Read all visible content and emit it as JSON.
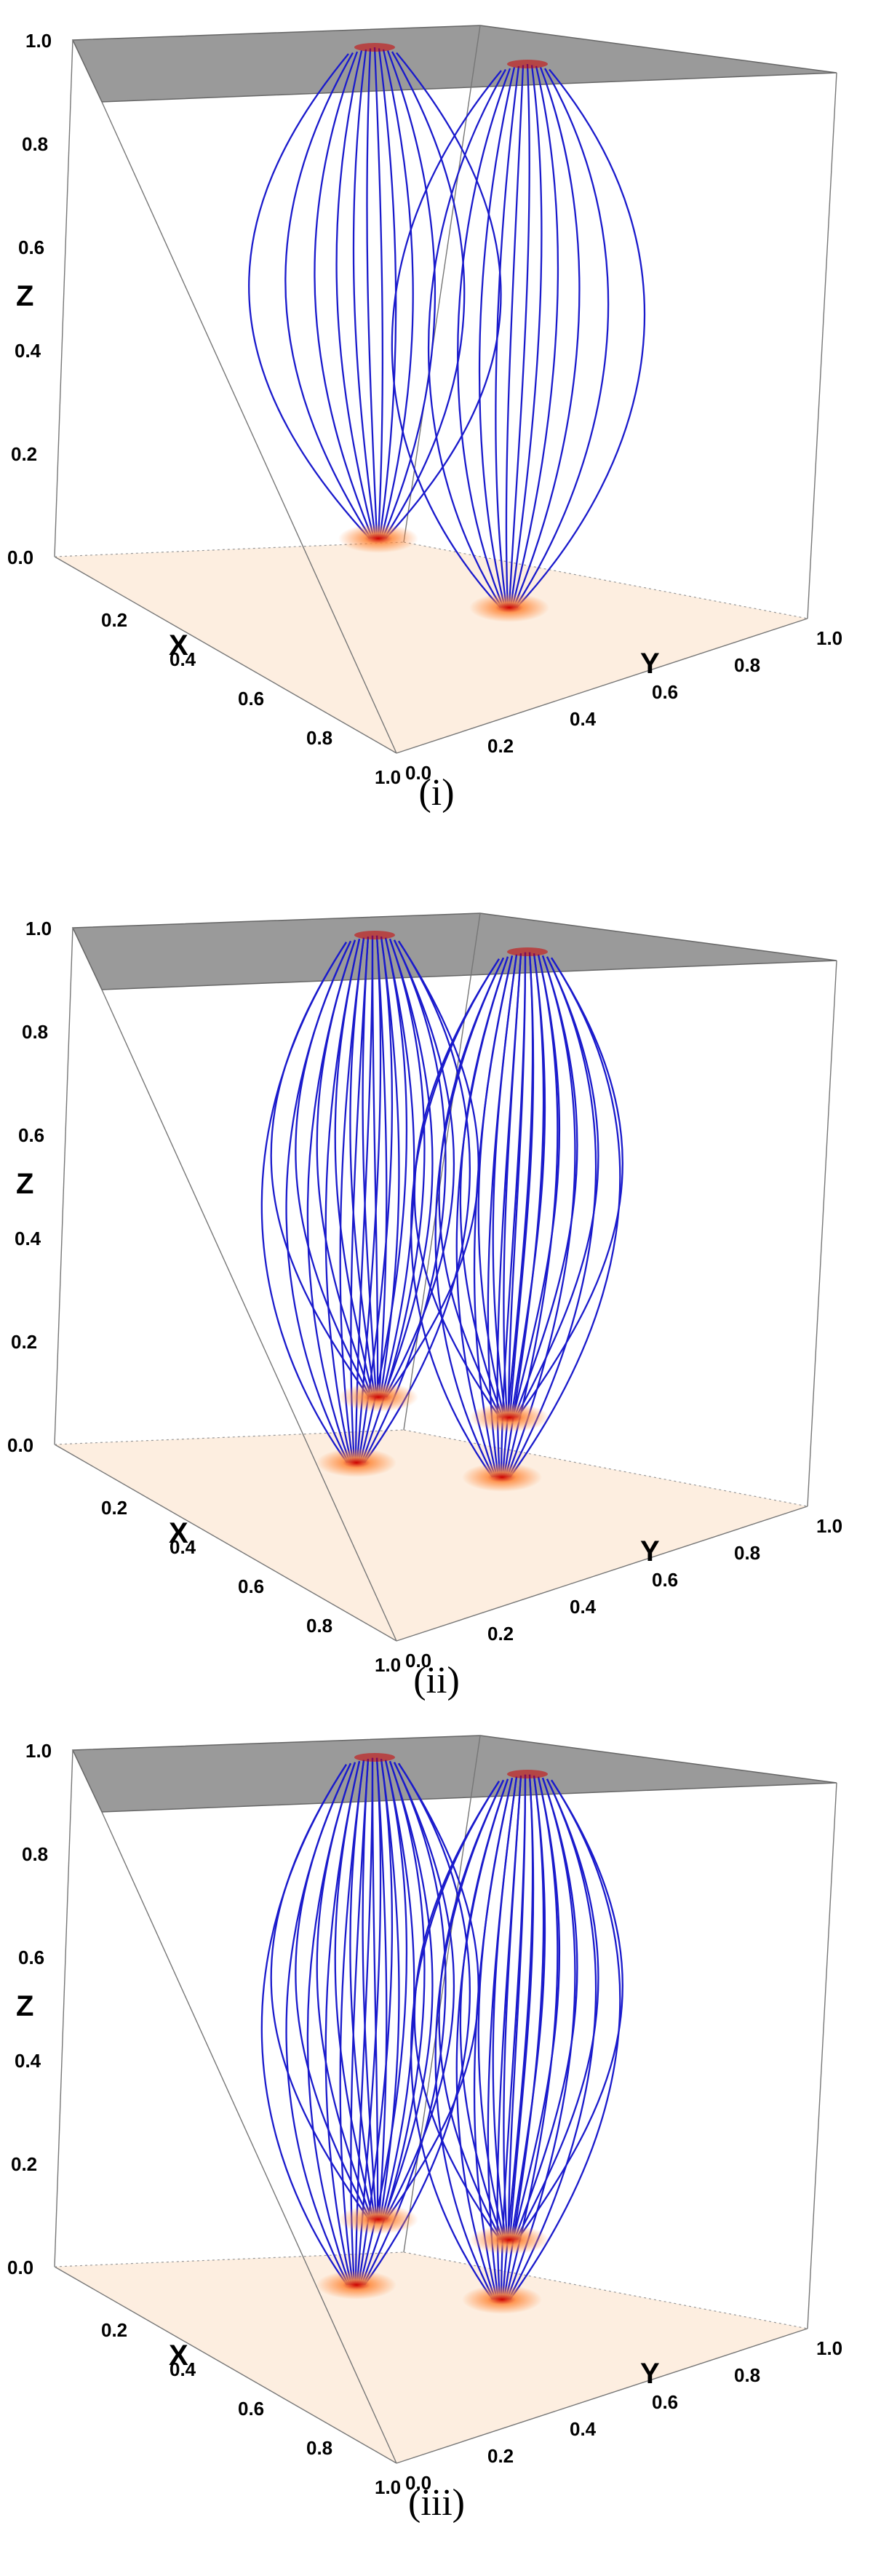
{
  "panels": [
    {
      "label": "(i)",
      "footpoints": {
        "bottom": 2,
        "top": 2
      },
      "z_ticks": [
        "0.0",
        "0.2",
        "0.4",
        "0.6",
        "0.8",
        "1.0"
      ],
      "x_ticks": [
        "0.2",
        "0.4",
        "0.6",
        "0.8",
        "1.0"
      ],
      "y_ticks": [
        "0.0",
        "0.2",
        "0.4",
        "0.6",
        "0.8",
        "1.0"
      ],
      "x_title": "X",
      "y_title": "Y",
      "z_title": "Z"
    },
    {
      "label": "(ii)",
      "footpoints": {
        "bottom": 4,
        "top": 2
      },
      "z_ticks": [
        "0.0",
        "0.2",
        "0.4",
        "0.6",
        "0.8",
        "1.0"
      ],
      "x_ticks": [
        "0.2",
        "0.4",
        "0.6",
        "0.8",
        "1.0"
      ],
      "y_ticks": [
        "0.0",
        "0.2",
        "0.4",
        "0.6",
        "0.8",
        "1.0"
      ],
      "x_title": "X",
      "y_title": "Y",
      "z_title": "Z"
    },
    {
      "label": "(iii)",
      "footpoints": {
        "bottom": 4,
        "top": 2
      },
      "z_ticks": [
        "0.0",
        "0.2",
        "0.4",
        "0.6",
        "0.8",
        "1.0"
      ],
      "x_ticks": [
        "0.2",
        "0.4",
        "0.6",
        "0.8",
        "1.0"
      ],
      "y_ticks": [
        "0.0",
        "0.2",
        "0.4",
        "0.6",
        "0.8",
        "1.0"
      ],
      "x_title": "X",
      "y_title": "Y",
      "z_title": "Z"
    }
  ],
  "colors": {
    "field_line": "#1a1acc",
    "top_plane": "#9a9a9a",
    "bottom_plane": "#fdeee0",
    "footpoint_core": "#cc0000",
    "footpoint_glow": "#ff8a3d"
  }
}
